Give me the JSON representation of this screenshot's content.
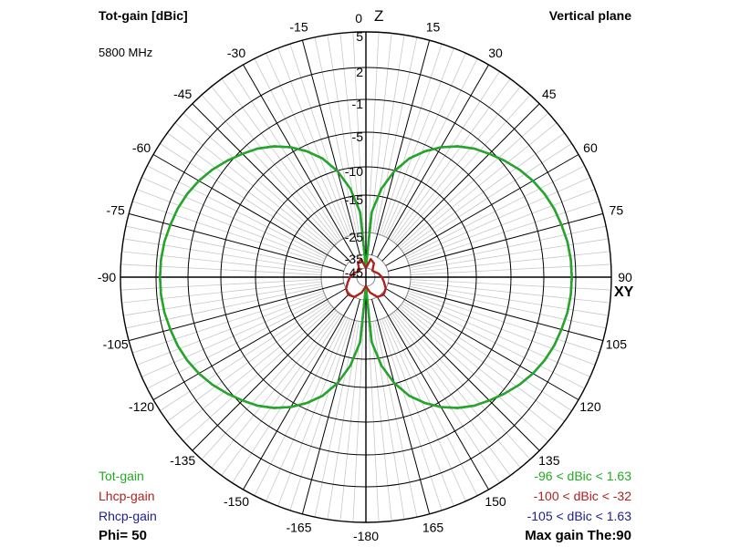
{
  "header": {
    "title": "Tot-gain [dBic]",
    "frequency": "5800 MHz",
    "plane": "Vertical plane"
  },
  "axis_markers": {
    "z": "Z",
    "xy": "XY"
  },
  "legend": {
    "items": [
      {
        "label": "Tot-gain",
        "range": "-96 < dBic < 1.63",
        "color": "#22aa22"
      },
      {
        "label": "Lhcp-gain",
        "range": "-100 < dBic < -32",
        "color": "#b02020"
      },
      {
        "label": "Rhcp-gain",
        "range": "-105 < dBic < 1.63",
        "color": "#202090"
      }
    ],
    "phi": "Phi= 50",
    "max_gain": "Max gain The:90"
  },
  "chart_data": {
    "type": "polar",
    "title": "Tot-gain [dBic]",
    "ring_labels": [
      "5",
      "2",
      "-1",
      "-5",
      "-10",
      "-15",
      "-25",
      "-35",
      "-45"
    ],
    "ring_values": [
      5,
      2,
      -1,
      -5,
      -10,
      -15,
      -25,
      -35,
      -45
    ],
    "angle_labels": [
      "0",
      "15",
      "30",
      "45",
      "60",
      "75",
      "90",
      "105",
      "120",
      "135",
      "150",
      "165",
      "-180",
      "-165",
      "-150",
      "-135",
      "-120",
      "-105",
      "-90",
      "-75",
      "-60",
      "-45",
      "-30",
      "-15"
    ],
    "angles": [
      0,
      15,
      30,
      45,
      60,
      75,
      90,
      105,
      120,
      135,
      150,
      165,
      180,
      -165,
      -150,
      -135,
      -120,
      -105,
      -90,
      -75,
      -60,
      -45,
      -30,
      -15
    ],
    "grid": true,
    "series": [
      {
        "name": "Rhcp-gain",
        "color": "#202090",
        "theta": [
          0,
          5,
          10,
          15,
          20,
          25,
          30,
          35,
          40,
          45,
          50,
          55,
          60,
          65,
          70,
          75,
          80,
          85,
          90
        ],
        "values": [
          -45,
          -19.6,
          -13.6,
          -10.1,
          -7.7,
          -5.9,
          -4.4,
          -3.2,
          -2.2,
          -1.4,
          -0.7,
          -0.1,
          0.4,
          0.8,
          1.1,
          1.3,
          1.5,
          1.6,
          1.63
        ]
      },
      {
        "name": "Tot-gain",
        "color": "#22aa22",
        "theta": [
          0,
          5,
          10,
          15,
          20,
          25,
          30,
          35,
          40,
          45,
          50,
          55,
          60,
          65,
          70,
          75,
          80,
          85,
          90
        ],
        "values": [
          -45,
          -19.6,
          -13.6,
          -10.1,
          -7.7,
          -5.9,
          -4.4,
          -3.2,
          -2.2,
          -1.4,
          -0.7,
          -0.1,
          0.4,
          0.8,
          1.1,
          1.3,
          1.5,
          1.6,
          1.63
        ]
      },
      {
        "name": "Lhcp-gain",
        "color": "#b02020",
        "theta": [
          0,
          15,
          30,
          45,
          60,
          75,
          90,
          105,
          120,
          135,
          150,
          165,
          180
        ],
        "values": [
          -45,
          -38,
          -40,
          -45,
          -44,
          -42,
          -40,
          -38,
          -35,
          -34,
          -35,
          -40,
          -45
        ]
      }
    ],
    "symmetric": true
  }
}
